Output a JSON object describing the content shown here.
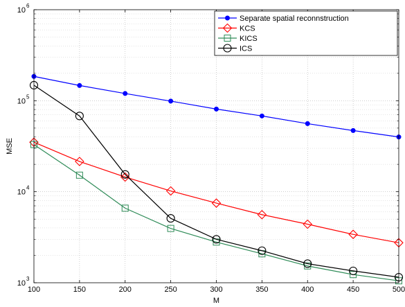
{
  "chart_data": {
    "type": "line",
    "title": "",
    "xlabel": "M",
    "ylabel": "MSE",
    "xlim": [
      100,
      500
    ],
    "ylim": [
      1000,
      1000000
    ],
    "yscale": "log",
    "grid": true,
    "legend_position": "top-right",
    "x": [
      100,
      150,
      200,
      250,
      300,
      350,
      400,
      450,
      500
    ],
    "x_ticks": [
      "100",
      "150",
      "200",
      "250",
      "300",
      "350",
      "400",
      "450",
      "500"
    ],
    "y_ticks": [
      {
        "value": 1000,
        "base": "10",
        "exp": "3"
      },
      {
        "value": 10000,
        "base": "10",
        "exp": "4"
      },
      {
        "value": 100000,
        "base": "10",
        "exp": "5"
      },
      {
        "value": 1000000,
        "base": "10",
        "exp": "6"
      }
    ],
    "series": [
      {
        "name": "Separate spatial reconnstruction",
        "color": "#0000ff",
        "marker": "dot",
        "values": [
          185000,
          147000,
          120000,
          99000,
          81000,
          68000,
          56000,
          47000,
          40000
        ]
      },
      {
        "name": "KCS",
        "color": "#ff0000",
        "marker": "diamond",
        "values": [
          35000,
          21500,
          14500,
          10200,
          7500,
          5600,
          4400,
          3400,
          2750
        ]
      },
      {
        "name": "KICS",
        "color": "#2e8b57",
        "marker": "square",
        "values": [
          33000,
          15200,
          6600,
          3950,
          2800,
          2080,
          1530,
          1230,
          1050
        ]
      },
      {
        "name": "ICS",
        "color": "#000000",
        "marker": "circle",
        "values": [
          148000,
          68000,
          15500,
          5100,
          3000,
          2250,
          1620,
          1350,
          1150
        ]
      }
    ]
  }
}
